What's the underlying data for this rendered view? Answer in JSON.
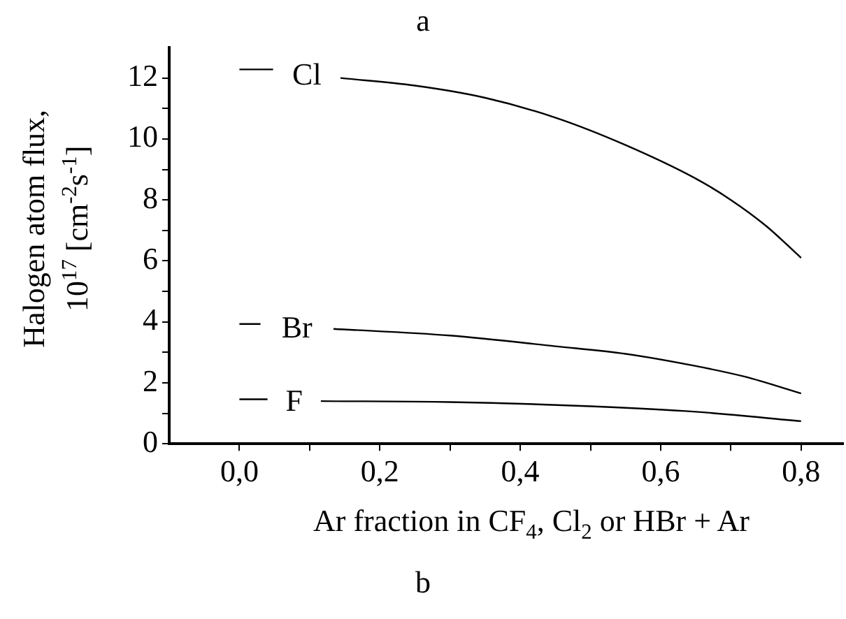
{
  "chart_data": {
    "type": "line",
    "title": "a",
    "xlabel": "Ar fraction in CF$_{4}$, Cl$_{2}$ or HBr + Ar",
    "ylabel": "Halogen atom flux,\n10$^{17}$ [cm$^{-2}$s$^{-1}$]",
    "annotations": [
      "b"
    ],
    "xlim": [
      -0.1,
      0.86
    ],
    "xticks": [
      {
        "value": 0,
        "label": "0,0"
      },
      {
        "value": 0.1,
        "label": null
      },
      {
        "value": 0.2,
        "label": "0,2"
      },
      {
        "value": 0.3,
        "label": null
      },
      {
        "value": 0.4,
        "label": "0,4"
      },
      {
        "value": 0.5,
        "label": null
      },
      {
        "value": 0.6,
        "label": "0,6"
      },
      {
        "value": 0.7,
        "label": null
      },
      {
        "value": 0.8,
        "label": "0,8"
      }
    ],
    "ylim": [
      0,
      13
    ],
    "yticks": [
      0,
      {
        "value": 1,
        "label": null
      },
      2,
      {
        "value": 3,
        "label": null
      },
      4,
      {
        "value": 5,
        "label": null
      },
      6,
      {
        "value": 7,
        "label": null
      },
      8,
      {
        "value": 9,
        "label": null
      },
      10,
      {
        "value": 11,
        "label": null
      },
      12
    ],
    "grid": false,
    "legend": false,
    "marker": "none",
    "line_style": "solid",
    "series": [
      {
        "name": "Cl",
        "color": "#000000",
        "x": [
          0,
          0.048,
          0.095,
          0.144,
          0.25,
          0.35,
          0.45,
          0.55,
          0.65,
          0.7,
          0.75,
          0.8
        ],
        "values": [
          12.28,
          12.28,
          null,
          12.0,
          11.75,
          11.35,
          10.7,
          9.8,
          8.7,
          8.0,
          7.15,
          6.1
        ]
      },
      {
        "name": "Br",
        "color": "#000000",
        "x": [
          0,
          0.03,
          0.08,
          0.134,
          0.3,
          0.45,
          0.55,
          0.65,
          0.72,
          0.8
        ],
        "values": [
          3.93,
          3.93,
          null,
          3.77,
          3.55,
          3.2,
          2.95,
          2.55,
          2.2,
          1.65
        ]
      },
      {
        "name": "F",
        "color": "#000000",
        "x": [
          0,
          0.04,
          0.08,
          0.116,
          0.3,
          0.5,
          0.65,
          0.8
        ],
        "values": [
          1.46,
          1.46,
          null,
          1.4,
          1.37,
          1.23,
          1.05,
          0.74
        ]
      }
    ]
  }
}
